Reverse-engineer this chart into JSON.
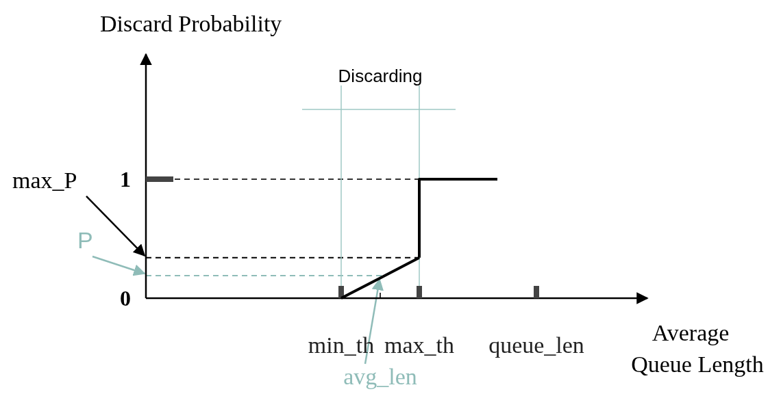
{
  "chart_data": {
    "type": "line",
    "ylabel": "Discard Probability",
    "xlabel": "Average Queue Length",
    "categories": [
      null,
      null,
      null,
      null,
      null,
      "min_th",
      null,
      "max_th",
      null,
      null,
      "queue_len",
      null,
      null
    ],
    "series": [
      {
        "color": "#000000",
        "values": [
          null,
          null,
          null,
          null,
          null,
          0,
          0.17,
          0.34,
          null,
          null,
          null,
          null,
          null
        ]
      },
      {
        "type": "step",
        "color": "#000000",
        "values": [
          null,
          null,
          null,
          null,
          null,
          null,
          null,
          0.34,
          1,
          1,
          null,
          null,
          null
        ]
      }
    ],
    "ylim": [
      0,
      2.05
    ],
    "yticks": [
      0,
      1
    ],
    "ref_lines": [
      {
        "axis": "y",
        "value": 1,
        "label": null,
        "color": "#333333",
        "line_style": "dashed"
      },
      {
        "axis": "y",
        "value": 0.34,
        "label": "max_P",
        "color": "#000000",
        "line_style": "dashed"
      },
      {
        "axis": "y",
        "value": 0.19,
        "label": "P",
        "color": "#8fbcb8",
        "line_style": "dashed"
      },
      {
        "axis": "x",
        "value": "min_th",
        "label": null,
        "color": "#9fc9c4",
        "line_style": "solid"
      },
      {
        "axis": "x",
        "value": "max_th",
        "label": null,
        "color": "#9fc9c4",
        "line_style": "solid"
      }
    ],
    "annotations": [
      "Discarding",
      {
        "text": "avg_len",
        "y": 0.17
      }
    ],
    "grid": false,
    "line_style": "solid"
  }
}
